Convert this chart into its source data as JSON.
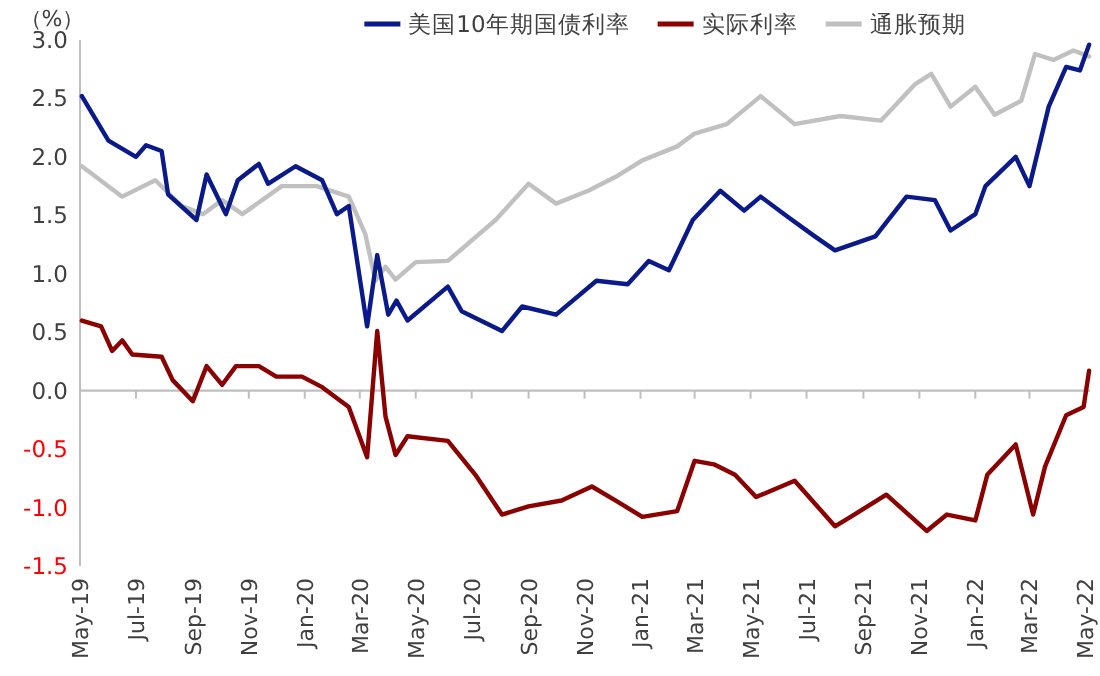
{
  "chart_data": {
    "type": "line",
    "ylabel": "（%）",
    "xlim": [
      "2019-05-01",
      "2022-05-06"
    ],
    "ylim": [
      -1.5,
      3.0
    ],
    "yticks": [
      {
        "value": -1.5,
        "label": "-1.5"
      },
      {
        "value": -1,
        "label": "-1.0"
      },
      {
        "value": -0.5,
        "label": "-0.5"
      },
      {
        "value": 0,
        "label": "0.0"
      },
      {
        "value": 0.5,
        "label": "0.5"
      },
      {
        "value": 1,
        "label": "1.0"
      },
      {
        "value": 1.5,
        "label": "1.5"
      },
      {
        "value": 2,
        "label": "2.0"
      },
      {
        "value": 2.5,
        "label": "2.5"
      },
      {
        "value": 3,
        "label": "3.0"
      }
    ],
    "xticks": [
      {
        "value": "2019-05-01",
        "label": "May-19"
      },
      {
        "value": "2019-07-01",
        "label": "Jul-19"
      },
      {
        "value": "2019-09-01",
        "label": "Sep-19"
      },
      {
        "value": "2019-11-01",
        "label": "Nov-19"
      },
      {
        "value": "2020-01-01",
        "label": "Jan-20"
      },
      {
        "value": "2020-03-01",
        "label": "Mar-20"
      },
      {
        "value": "2020-05-01",
        "label": "May-20"
      },
      {
        "value": "2020-07-01",
        "label": "Jul-20"
      },
      {
        "value": "2020-09-01",
        "label": "Sep-20"
      },
      {
        "value": "2020-11-01",
        "label": "Nov-20"
      },
      {
        "value": "2021-01-01",
        "label": "Jan-21"
      },
      {
        "value": "2021-03-01",
        "label": "Mar-21"
      },
      {
        "value": "2021-05-01",
        "label": "May-21"
      },
      {
        "value": "2021-07-01",
        "label": "Jul-21"
      },
      {
        "value": "2021-09-01",
        "label": "Sep-21"
      },
      {
        "value": "2021-11-01",
        "label": "Nov-21"
      },
      {
        "value": "2022-01-01",
        "label": "Jan-22"
      },
      {
        "value": "2022-03-01",
        "label": "Mar-22"
      },
      {
        "value": "2022-05-01",
        "label": "May-22"
      }
    ],
    "legend": "top",
    "marker": "none",
    "line_style": "solid",
    "series": [
      {
        "name": "美国10年期国债利率",
        "color": "#0a1a8a",
        "x": [
          "2019-05-03",
          "2019-06-01",
          "2019-07-01",
          "2019-07-12",
          "2019-07-29",
          "2019-08-05",
          "2019-09-05",
          "2019-09-16",
          "2019-10-07",
          "2019-10-20",
          "2019-11-12",
          "2019-11-22",
          "2019-12-22",
          "2020-01-20",
          "2020-02-05",
          "2020-02-18",
          "2020-03-09",
          "2020-03-20",
          "2020-04-01",
          "2020-04-10",
          "2020-04-22",
          "2020-06-05",
          "2020-06-20",
          "2020-08-03",
          "2020-08-25",
          "2020-10-01",
          "2020-11-14",
          "2020-12-18",
          "2021-01-10",
          "2021-02-01",
          "2021-02-27",
          "2021-03-29",
          "2021-04-24",
          "2021-05-12",
          "2021-06-10",
          "2021-07-10",
          "2021-08-01",
          "2021-09-14",
          "2021-10-18",
          "2021-11-18",
          "2021-12-05",
          "2022-01-01",
          "2022-01-12",
          "2022-02-14",
          "2022-03-01",
          "2022-03-22",
          "2022-04-10",
          "2022-04-25",
          "2022-05-05"
        ],
        "values": [
          2.52,
          2.14,
          2.0,
          2.1,
          2.05,
          1.68,
          1.46,
          1.85,
          1.51,
          1.8,
          1.94,
          1.77,
          1.92,
          1.8,
          1.51,
          1.58,
          0.55,
          1.16,
          0.65,
          0.77,
          0.6,
          0.89,
          0.68,
          0.51,
          0.72,
          0.65,
          0.94,
          0.91,
          1.11,
          1.03,
          1.46,
          1.71,
          1.54,
          1.66,
          1.49,
          1.32,
          1.2,
          1.32,
          1.66,
          1.63,
          1.37,
          1.51,
          1.75,
          2.0,
          1.75,
          2.43,
          2.77,
          2.74,
          2.96
        ]
      },
      {
        "name": "实际利率",
        "color": "#8b0000",
        "x": [
          "2019-05-03",
          "2019-05-24",
          "2019-06-05",
          "2019-06-16",
          "2019-06-27",
          "2019-07-29",
          "2019-08-10",
          "2019-09-01",
          "2019-09-16",
          "2019-10-03",
          "2019-10-18",
          "2019-11-12",
          "2019-12-01",
          "2019-12-29",
          "2020-01-20",
          "2020-02-18",
          "2020-03-09",
          "2020-03-20",
          "2020-03-29",
          "2020-04-09",
          "2020-04-22",
          "2020-06-05",
          "2020-07-05",
          "2020-08-03",
          "2020-09-01",
          "2020-10-07",
          "2020-11-09",
          "2020-12-05",
          "2021-01-03",
          "2021-02-10",
          "2021-03-01",
          "2021-03-22",
          "2021-04-14",
          "2021-05-07",
          "2021-06-18",
          "2021-08-01",
          "2021-08-22",
          "2021-09-26",
          "2021-11-09",
          "2021-12-01",
          "2022-01-01",
          "2022-01-14",
          "2022-02-14",
          "2022-03-05",
          "2022-03-18",
          "2022-04-10",
          "2022-04-29",
          "2022-05-05"
        ],
        "values": [
          0.6,
          0.55,
          0.34,
          0.43,
          0.31,
          0.29,
          0.09,
          -0.09,
          0.21,
          0.05,
          0.21,
          0.21,
          0.12,
          0.12,
          0.03,
          -0.14,
          -0.57,
          0.51,
          -0.22,
          -0.55,
          -0.39,
          -0.43,
          -0.72,
          -1.06,
          -0.99,
          -0.94,
          -0.82,
          -0.94,
          -1.08,
          -1.03,
          -0.6,
          -0.63,
          -0.72,
          -0.91,
          -0.77,
          -1.16,
          -1.06,
          -0.89,
          -1.2,
          -1.06,
          -1.11,
          -0.72,
          -0.46,
          -1.06,
          -0.65,
          -0.21,
          -0.14,
          0.17
        ]
      },
      {
        "name": "通胀预期",
        "color": "#c0c0c0",
        "x": [
          "2019-05-03",
          "2019-06-16",
          "2019-07-22",
          "2019-08-20",
          "2019-09-12",
          "2019-10-03",
          "2019-10-25",
          "2019-12-07",
          "2020-01-14",
          "2020-02-18",
          "2020-03-07",
          "2020-03-18",
          "2020-03-29",
          "2020-04-09",
          "2020-05-01",
          "2020-06-05",
          "2020-07-27",
          "2020-09-01",
          "2020-10-01",
          "2020-11-05",
          "2020-12-05",
          "2021-01-03",
          "2021-02-10",
          "2021-03-01",
          "2021-04-05",
          "2021-05-12",
          "2021-06-18",
          "2021-08-07",
          "2021-09-20",
          "2021-10-27",
          "2021-11-14",
          "2021-12-05",
          "2022-01-01",
          "2022-01-22",
          "2022-02-20",
          "2022-03-07",
          "2022-03-27",
          "2022-04-18",
          "2022-05-05"
        ],
        "values": [
          1.92,
          1.66,
          1.8,
          1.58,
          1.51,
          1.63,
          1.51,
          1.75,
          1.75,
          1.66,
          1.34,
          0.94,
          1.06,
          0.95,
          1.1,
          1.11,
          1.46,
          1.77,
          1.6,
          1.71,
          1.83,
          1.97,
          2.09,
          2.2,
          2.28,
          2.52,
          2.28,
          2.35,
          2.31,
          2.62,
          2.71,
          2.43,
          2.6,
          2.36,
          2.48,
          2.88,
          2.83,
          2.91,
          2.86
        ]
      }
    ]
  }
}
